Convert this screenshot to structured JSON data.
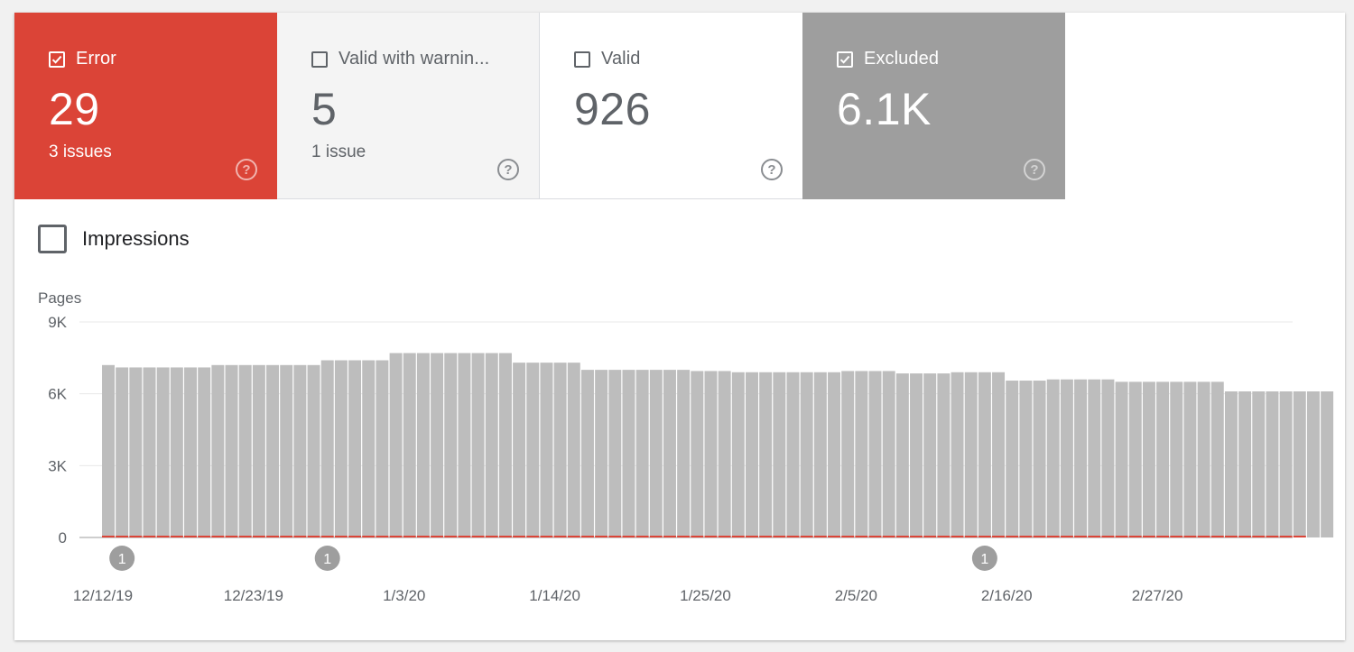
{
  "tiles": [
    {
      "label": "Error",
      "value": "29",
      "sub": "3 issues",
      "checked": true
    },
    {
      "label": "Valid with warnin...",
      "value": "5",
      "sub": "1 issue",
      "checked": false
    },
    {
      "label": "Valid",
      "value": "926",
      "sub": "",
      "checked": false
    },
    {
      "label": "Excluded",
      "value": "6.1K",
      "sub": "",
      "checked": true
    }
  ],
  "help_icon": "?",
  "impressions": {
    "label": "Impressions",
    "checked": false
  },
  "colors": {
    "error": "#db4437",
    "excluded": "#9e9e9e",
    "bar": "#bdbdbd"
  },
  "chart_data": {
    "type": "bar",
    "title": "",
    "ylabel": "Pages",
    "xlabel": "",
    "ylim": [
      0,
      9000
    ],
    "yticks": [
      "0",
      "3K",
      "6K",
      "9K"
    ],
    "xtick_labels": [
      "12/12/19",
      "12/23/19",
      "1/3/20",
      "1/14/20",
      "1/25/20",
      "2/5/20",
      "2/16/20",
      "2/27/20"
    ],
    "first_date": "12/12/19",
    "series": [
      {
        "name": "Excluded",
        "color": "#bdbdbd",
        "values": [
          7200,
          7100,
          7100,
          7100,
          7100,
          7100,
          7100,
          7100,
          7200,
          7200,
          7200,
          7200,
          7200,
          7200,
          7200,
          7200,
          7400,
          7400,
          7400,
          7400,
          7400,
          7700,
          7700,
          7700,
          7700,
          7700,
          7700,
          7700,
          7700,
          7700,
          7300,
          7300,
          7300,
          7300,
          7300,
          7000,
          7000,
          7000,
          7000,
          7000,
          7000,
          7000,
          7000,
          6950,
          6950,
          6950,
          6900,
          6900,
          6900,
          6900,
          6900,
          6900,
          6900,
          6900,
          6950,
          6950,
          6950,
          6950,
          6850,
          6850,
          6850,
          6850,
          6900,
          6900,
          6900,
          6900,
          6550,
          6550,
          6550,
          6600,
          6600,
          6600,
          6600,
          6600,
          6500,
          6500,
          6500,
          6500,
          6500,
          6500,
          6500,
          6500,
          6100,
          6100,
          6100,
          6100,
          6100,
          6100,
          6100,
          6100
        ]
      },
      {
        "name": "Error",
        "color": "#db4437",
        "values": [
          29,
          29,
          29,
          29,
          29,
          29,
          29,
          29,
          29,
          29,
          29,
          29,
          29,
          29,
          29,
          29,
          29,
          29,
          29,
          29,
          29,
          29,
          29,
          29,
          29,
          29,
          29,
          29,
          29,
          29,
          29,
          29,
          29,
          29,
          29,
          29,
          29,
          29,
          29,
          29,
          29,
          29,
          29,
          29,
          29,
          29,
          29,
          29,
          29,
          29,
          29,
          29,
          29,
          29,
          29,
          29,
          29,
          29,
          29,
          29,
          29,
          29,
          29,
          29,
          29,
          29,
          29,
          29,
          29,
          29,
          29,
          29,
          29,
          29,
          29,
          29,
          29,
          29,
          29,
          29,
          29,
          29,
          29,
          29,
          29,
          29,
          29,
          29
        ]
      }
    ],
    "annotations": [
      {
        "date": "12/13/19",
        "label": "1"
      },
      {
        "date": "12/28/19",
        "label": "1"
      },
      {
        "date": "2/14/20",
        "label": "1"
      }
    ]
  }
}
